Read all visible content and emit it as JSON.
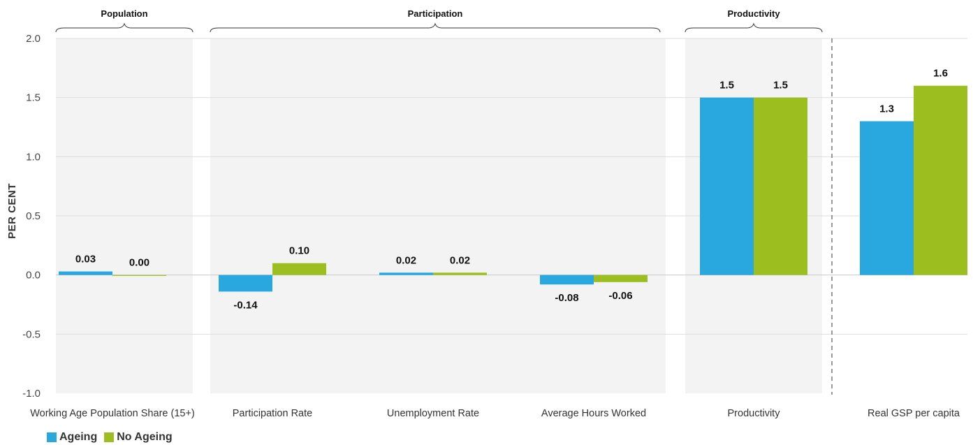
{
  "chart_data": {
    "type": "bar",
    "ylabel": "PER CENT",
    "ylim": [
      -1.0,
      2.0
    ],
    "yticks": [
      "2.0",
      "1.5",
      "1.0",
      "0.5",
      "0.0",
      "-0.5",
      "-1.0"
    ],
    "categories": [
      "Working Age Population Share (15+)",
      "Participation Rate",
      "Unemployment Rate",
      "Average Hours Worked",
      "Productivity",
      "Real GSP per capita"
    ],
    "series": [
      {
        "name": "Ageing",
        "color": "#29a8e0",
        "values": [
          0.03,
          -0.14,
          0.02,
          -0.08,
          1.5,
          1.3
        ],
        "labels": [
          "0.03",
          "-0.14",
          "0.02",
          "-0.08",
          "1.5",
          "1.3"
        ]
      },
      {
        "name": "No Ageing",
        "color": "#9cbe1e",
        "values": [
          0.0,
          0.1,
          0.02,
          -0.06,
          1.5,
          1.6
        ],
        "labels": [
          "0.00",
          "0.10",
          "0.02",
          "-0.06",
          "1.5",
          "1.6"
        ]
      }
    ],
    "groups": [
      {
        "label": "Population",
        "categories": [
          0
        ]
      },
      {
        "label": "Participation",
        "categories": [
          1,
          2,
          3
        ]
      },
      {
        "label": "Productivity",
        "categories": [
          4
        ]
      }
    ],
    "grid": true,
    "legend": "bottom-left"
  }
}
